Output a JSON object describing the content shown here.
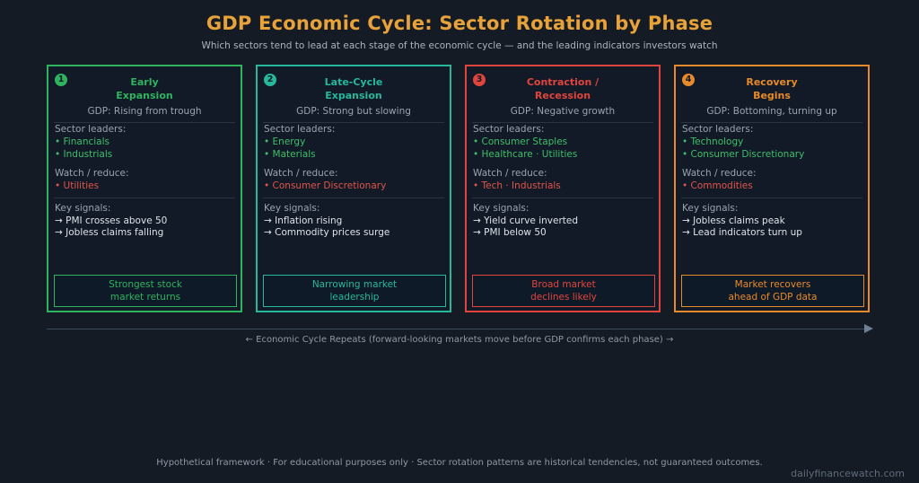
{
  "title": "GDP Economic Cycle: Sector Rotation by Phase",
  "subtitle": "Which sectors tend to lead at each stage of the economic cycle — and the leading indicators investors watch",
  "labels": {
    "sector_leaders": "Sector leaders:",
    "watch_reduce": "Watch / reduce:",
    "key_signals": "Key signals:"
  },
  "phases": [
    {
      "number": "1",
      "name": "Early\nExpansion",
      "color": "#2fb35f",
      "gdp": "GDP: Rising from trough",
      "leaders": [
        "• Financials",
        "• Industrials"
      ],
      "reduce": [
        "• Utilities"
      ],
      "signals": [
        "→ PMI crosses above 50",
        "→ Jobless claims falling"
      ],
      "outcome": "Strongest stock\nmarket returns"
    },
    {
      "number": "2",
      "name": "Late-Cycle\nExpansion",
      "color": "#26b89a",
      "gdp": "GDP: Strong but slowing",
      "leaders": [
        "• Energy",
        "• Materials"
      ],
      "reduce": [
        "• Consumer Discretionary"
      ],
      "signals": [
        "→ Inflation rising",
        "→ Commodity prices surge"
      ],
      "outcome": "Narrowing market\nleadership"
    },
    {
      "number": "3",
      "name": "Contraction /\nRecession",
      "color": "#e0453d",
      "gdp": "GDP: Negative growth",
      "leaders": [
        "• Consumer Staples",
        "• Healthcare · Utilities"
      ],
      "reduce": [
        "• Tech · Industrials"
      ],
      "signals": [
        "→ Yield curve inverted",
        "→ PMI below 50"
      ],
      "outcome": "Broad market\ndeclines likely"
    },
    {
      "number": "4",
      "name": "Recovery\nBegins",
      "color": "#e88a2a",
      "gdp": "GDP: Bottoming, turning up",
      "leaders": [
        "• Technology",
        "• Consumer Discretionary"
      ],
      "reduce": [
        "• Commodities"
      ],
      "signals": [
        "→ Jobless claims peak",
        "→ Lead indicators turn up"
      ],
      "outcome": "Market recovers\nahead of GDP data"
    }
  ],
  "leader_color": "#3fbf6a",
  "reduce_color": "#e0554a",
  "cycle_caption": "← Economic Cycle Repeats  (forward-looking markets move before GDP confirms each phase) →",
  "footnote": "Hypothetical framework · For educational purposes only · Sector rotation patterns are historical tendencies, not guaranteed outcomes.",
  "brand": "dailyfinancewatch.com"
}
